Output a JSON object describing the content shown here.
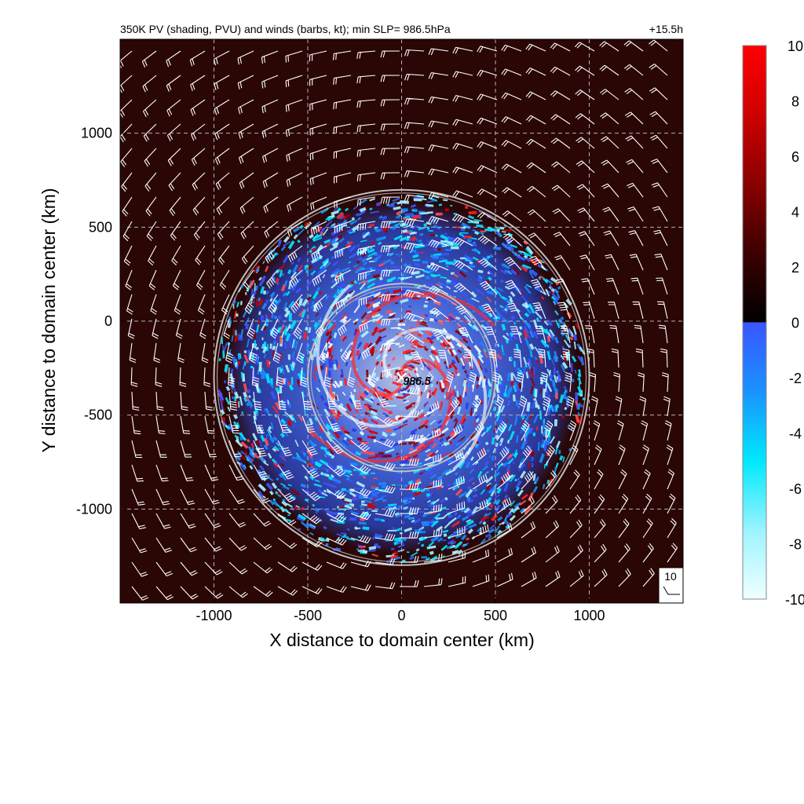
{
  "chart_data": {
    "type": "heatmap",
    "title": "350K PV (shading, PVU) and winds (barbs, kt); min SLP=  986.5hPa",
    "forecast_hour": "+15.5h",
    "xlabel": "X distance to domain center (km)",
    "ylabel": "Y distance to domain center (km)",
    "xlim": [
      -1500,
      1500
    ],
    "ylim": [
      -1500,
      1500
    ],
    "xticks": [
      -1000,
      -500,
      0,
      500,
      1000
    ],
    "yticks": [
      -1000,
      -500,
      0,
      500,
      1000
    ],
    "xtick_labels": [
      "-1000",
      "-500",
      "0",
      "500",
      "1000"
    ],
    "ytick_labels": [
      "-1000",
      "-500",
      "0",
      "500",
      "1000"
    ],
    "grid": true,
    "center": {
      "x": 0,
      "y": -300,
      "label": "986.5"
    },
    "range_rings_km": [
      500,
      1000
    ],
    "colorbar": {
      "min": -10,
      "max": 10,
      "ticks": [
        10,
        8,
        6,
        4,
        2,
        0,
        -2,
        -4,
        -6,
        -8,
        -10
      ],
      "tick_labels": [
        "10",
        "8",
        "6",
        "4",
        "2",
        "0",
        "-2",
        "-4",
        "-6",
        "-8",
        "-10"
      ],
      "positive_colors": [
        "#000000",
        "#3a0000",
        "#8a0000",
        "#d00000",
        "#ff0000"
      ],
      "negative_colors": [
        "#3a55ff",
        "#1a8cff",
        "#00e5ff",
        "#80f0ff",
        "#f0ffff"
      ]
    },
    "reference_barb": {
      "label": "10"
    },
    "colors": {
      "background_field": "#2a0605",
      "barbs": "#ffffff",
      "rings": "#c0c0c0",
      "grid": "#b4b4b4"
    }
  }
}
